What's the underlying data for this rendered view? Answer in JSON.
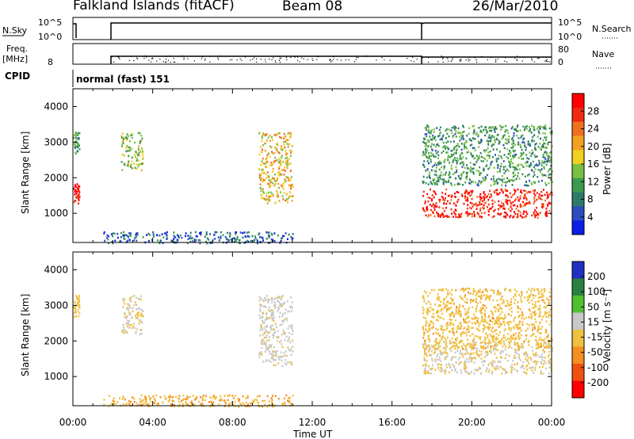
{
  "header": {
    "station": "Falkland Islands (fitACF)",
    "beam": "Beam 08",
    "date": "26/Mar/2010"
  },
  "strips": {
    "nsky_label": "N.Sky",
    "nsearch_label": "N.Search",
    "freq_label": "Freq.",
    "freq_unit": "[MHz]",
    "nave_label": "Nave",
    "cpid_label": "CPID",
    "cpid_value": "normal (fast) 151",
    "noise_ticks": [
      "10^5",
      "10^0"
    ],
    "freq_ticks": [
      "8"
    ],
    "nave_ticks": [
      "80",
      "0"
    ]
  },
  "colors": {
    "power_scale": [
      "#0a1ee6",
      "#2a4ec0",
      "#2e7a6a",
      "#3c9a50",
      "#7ac040",
      "#f0d020",
      "#f4a020",
      "#f07020",
      "#ef2a10",
      "#ff0000"
    ],
    "velocity_scale": [
      "#2030c0",
      "#2a8040",
      "#50c030",
      "#c8c8c8",
      "#f0c040",
      "#f49020",
      "#f05010",
      "#ff0000"
    ]
  },
  "chart_data": [
    {
      "type": "heatmap",
      "title": "Power",
      "ylabel": "Slant Range [km]",
      "xlabel": "Time UT",
      "ylim": [
        180,
        4500
      ],
      "yticks": [
        1000,
        2000,
        3000,
        4000
      ],
      "x_tick_labels": [
        "00:00",
        "04:00",
        "08:00",
        "12:00",
        "16:00",
        "20:00",
        "00:00"
      ],
      "colorbar": {
        "label": "Power [dB]",
        "ticks": [
          "4",
          "8",
          "12",
          "16",
          "20",
          "24",
          "28"
        ],
        "range": [
          0,
          30
        ]
      },
      "echo_regions": [
        {
          "t_start": 0.0,
          "t_end": 0.3,
          "range_min": 1300,
          "range_max": 1900,
          "power_db": 28
        },
        {
          "t_start": 0.0,
          "t_end": 0.3,
          "range_min": 2700,
          "range_max": 3300,
          "power_db": 10
        },
        {
          "t_start": 2.4,
          "t_end": 3.5,
          "range_min": 2200,
          "range_max": 3300,
          "power_db": 14
        },
        {
          "t_start": 9.3,
          "t_end": 11.0,
          "range_min": 1300,
          "range_max": 3300,
          "power_db": 18
        },
        {
          "t_start": 1.5,
          "t_end": 11.0,
          "range_min": 180,
          "range_max": 500,
          "power_db": 6
        },
        {
          "t_start": 17.5,
          "t_end": 24.0,
          "range_min": 900,
          "range_max": 1700,
          "power_db": 27
        },
        {
          "t_start": 17.5,
          "t_end": 24.0,
          "range_min": 1800,
          "range_max": 3500,
          "power_db": 10
        }
      ]
    },
    {
      "type": "heatmap",
      "title": "Velocity",
      "ylabel": "Slant Range [km]",
      "xlabel": "Time UT",
      "ylim": [
        180,
        4500
      ],
      "yticks": [
        1000,
        2000,
        3000,
        4000
      ],
      "x_tick_labels": [
        "00:00",
        "04:00",
        "08:00",
        "12:00",
        "16:00",
        "20:00",
        "00:00"
      ],
      "colorbar": {
        "label": "Velocity [m s⁻¹]",
        "ticks": [
          "200",
          "100",
          "50",
          "15",
          "-15",
          "-50",
          "-100",
          "-200"
        ],
        "range": [
          -250,
          250
        ]
      },
      "echo_regions": [
        {
          "t_start": 0.0,
          "t_end": 0.3,
          "range_min": 2700,
          "range_max": 3300,
          "velocity": -30
        },
        {
          "t_start": 2.4,
          "t_end": 3.5,
          "range_min": 2200,
          "range_max": 3300,
          "velocity": 0
        },
        {
          "t_start": 9.3,
          "t_end": 11.0,
          "range_min": 1300,
          "range_max": 3300,
          "velocity": 20
        },
        {
          "t_start": 1.5,
          "t_end": 11.0,
          "range_min": 180,
          "range_max": 500,
          "velocity": -60
        },
        {
          "t_start": 17.5,
          "t_end": 24.0,
          "range_min": 1100,
          "range_max": 2000,
          "velocity": 0
        },
        {
          "t_start": 17.5,
          "t_end": 24.0,
          "range_min": 1800,
          "range_max": 3500,
          "velocity": -40
        }
      ]
    }
  ]
}
